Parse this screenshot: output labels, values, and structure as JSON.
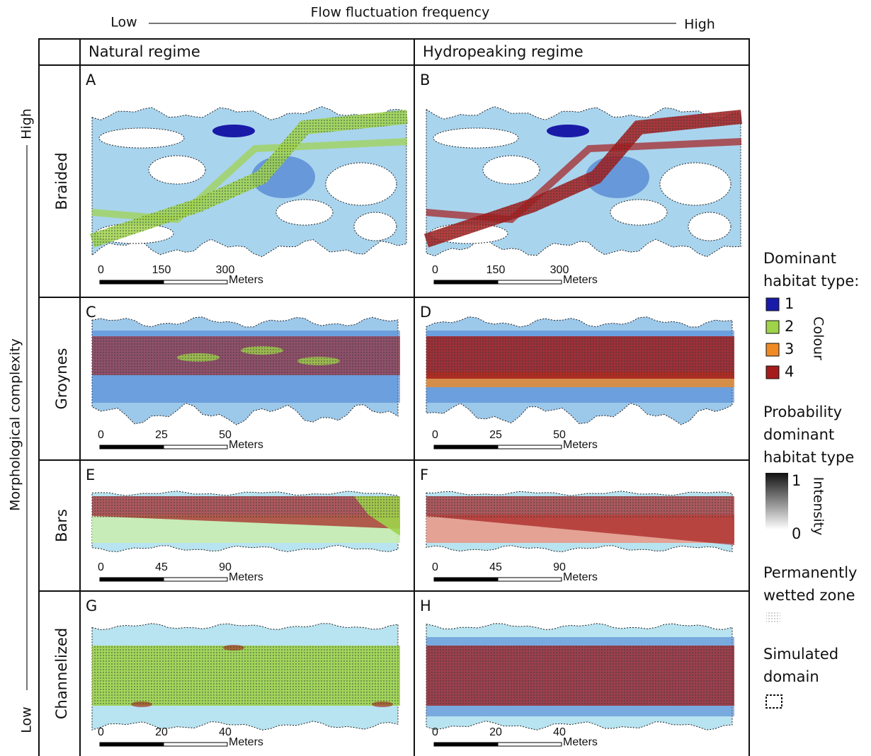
{
  "header": {
    "title": "Flow fluctuation frequency",
    "low": "Low",
    "high": "High"
  },
  "side": {
    "title": "Morphological complexity",
    "high": "High",
    "low": "Low"
  },
  "columns": [
    "Natural regime",
    "Hydropeaking regime"
  ],
  "rows": [
    {
      "label": "Braided",
      "letters": [
        "A",
        "B"
      ],
      "scale": [
        0,
        150,
        300
      ],
      "unit": "Meters"
    },
    {
      "label": "Groynes",
      "letters": [
        "C",
        "D"
      ],
      "scale": [
        0,
        25,
        50
      ],
      "unit": "Meters"
    },
    {
      "label": "Bars",
      "letters": [
        "E",
        "F"
      ],
      "scale": [
        0,
        45,
        90
      ],
      "unit": "Meters"
    },
    {
      "label": "Channelized",
      "letters": [
        "G",
        "H"
      ],
      "scale": [
        0,
        20,
        40
      ],
      "unit": "Meters"
    }
  ],
  "legend": {
    "habitat_title": [
      "Dominant",
      "habitat type:"
    ],
    "classes": [
      {
        "label": "1",
        "color": "#1a1aa8"
      },
      {
        "label": "2",
        "color": "#9fd34a"
      },
      {
        "label": "3",
        "color": "#f08a24"
      },
      {
        "label": "4",
        "color": "#a51c1c"
      }
    ],
    "colour_label": "Colour",
    "probability_title": [
      "Probability",
      "dominant",
      "habitat type"
    ],
    "intensity_high": "1",
    "intensity_low": "0",
    "intensity_label": "Intensity",
    "wetted_title": [
      "Permanently",
      "wetted zone"
    ],
    "domain_title": [
      "Simulated",
      "domain"
    ]
  }
}
